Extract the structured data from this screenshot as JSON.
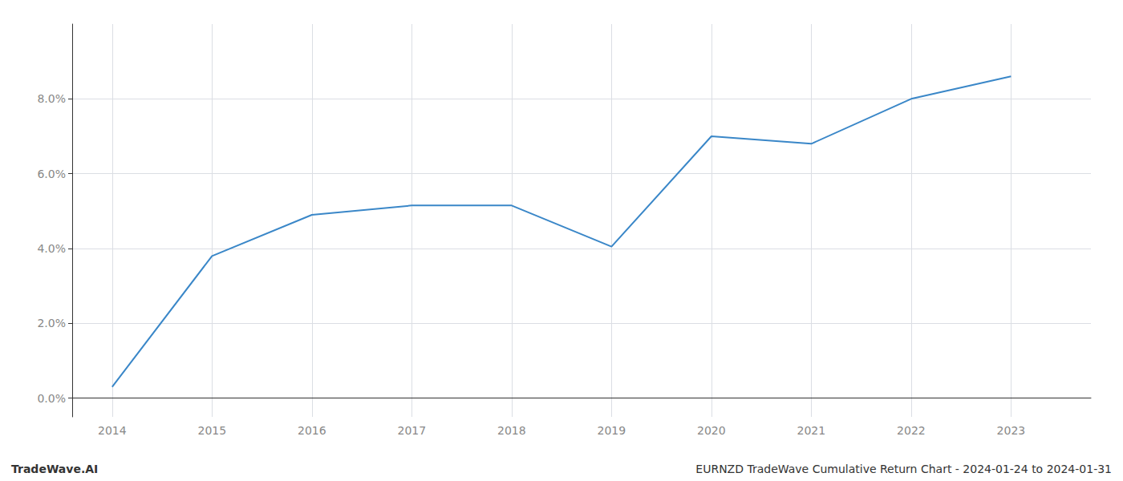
{
  "chart_data": {
    "type": "line",
    "title": "EURNZD TradeWave Cumulative Return Chart - 2024-01-24 to 2024-01-31",
    "annotations": [
      "TradeWave.AI"
    ],
    "x": [
      2014,
      2015,
      2016,
      2017,
      2018,
      2019,
      2020,
      2021,
      2022,
      2023
    ],
    "values": [
      0.3,
      3.8,
      4.9,
      5.15,
      5.15,
      4.05,
      7.0,
      6.8,
      8.0,
      8.6
    ],
    "color": "#3a87c8",
    "xlim": [
      2013.6,
      2023.8
    ],
    "ylim": [
      -0.5,
      10.0
    ],
    "xticks": [
      2014,
      2015,
      2016,
      2017,
      2018,
      2019,
      2020,
      2021,
      2022,
      2023
    ],
    "yticks": [
      {
        "value": 0.0,
        "label": "0.0%"
      },
      {
        "value": 2.0,
        "label": "2.0%"
      },
      {
        "value": 4.0,
        "label": "4.0%"
      },
      {
        "value": 6.0,
        "label": "6.0%"
      },
      {
        "value": 8.0,
        "label": "8.0%"
      }
    ],
    "grid": true
  }
}
